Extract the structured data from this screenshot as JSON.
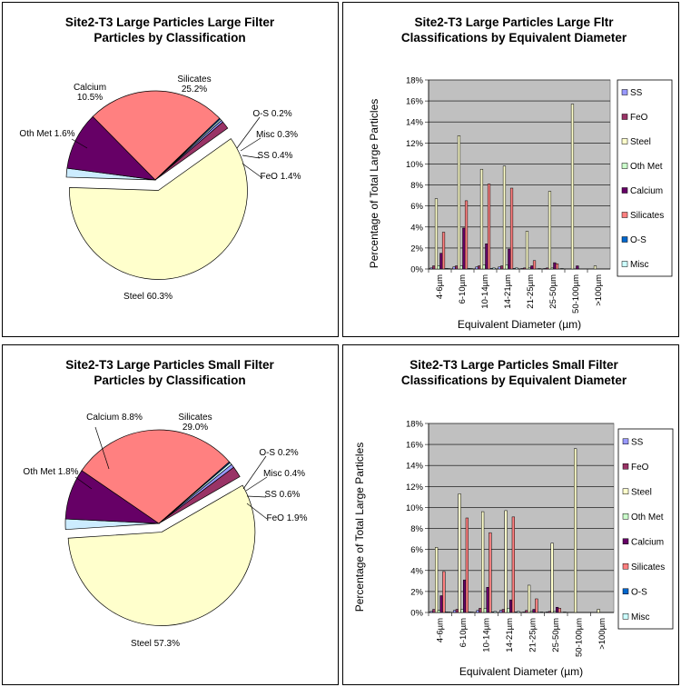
{
  "chart_data": [
    {
      "type": "pie",
      "title": [
        "Site2-T3 Large Particles Large Filter",
        "Particles by Classification"
      ],
      "slices": [
        {
          "label": "Steel 60.3%",
          "name": "Steel",
          "value": 60.3,
          "color": "#ffffcc"
        },
        {
          "label": "Oth Met 1.6%",
          "name": "Oth Met",
          "value": 1.6,
          "color": "#ccecff"
        },
        {
          "label": "Calcium\n10.5%",
          "name": "Calcium",
          "value": 10.5,
          "color": "#660066"
        },
        {
          "label": "Silicates\n25.2%",
          "name": "Silicates",
          "value": 25.2,
          "color": "#ff8080"
        },
        {
          "label": "O-S 0.2%",
          "name": "O-S",
          "value": 0.2,
          "color": "#0066cc"
        },
        {
          "label": "Misc 0.3%",
          "name": "Misc",
          "value": 0.3,
          "color": "#ccffff"
        },
        {
          "label": "SS 0.4%",
          "name": "SS",
          "value": 0.4,
          "color": "#9999ff"
        },
        {
          "label": "FeO 1.4%",
          "name": "FeO",
          "value": 1.4,
          "color": "#993366"
        }
      ]
    },
    {
      "type": "bar",
      "title": [
        "Site2-T3 Large Particles Large Fltr",
        "Classifications  by Equivalent Diameter"
      ],
      "xlabel": "Equivalent Diameter (µm)",
      "ylabel": "Percentage of Total Large Particles",
      "ylim": [
        0,
        18
      ],
      "yticks": [
        "0%",
        "2%",
        "4%",
        "6%",
        "8%",
        "10%",
        "12%",
        "14%",
        "16%",
        "18%"
      ],
      "grid": true,
      "legend_position": "right",
      "categories": [
        "4-6µm",
        "6-10µm",
        "10-14µm",
        "14-21µm",
        "21-25µm",
        "25-50µm",
        "50-100µm",
        ">100µm"
      ],
      "series": [
        {
          "name": "SS",
          "color": "#9999ff",
          "values": [
            0.1,
            0.2,
            0.2,
            0.2,
            0.05,
            0.05,
            0.0,
            0.0
          ]
        },
        {
          "name": "FeO",
          "color": "#993366",
          "values": [
            0.3,
            0.3,
            0.3,
            0.3,
            0.1,
            0.1,
            0.0,
            0.0
          ]
        },
        {
          "name": "Steel",
          "color": "#ffffcc",
          "values": [
            6.7,
            12.7,
            9.5,
            9.8,
            3.6,
            7.4,
            15.7,
            0.3
          ]
        },
        {
          "name": "Oth Met",
          "color": "#ccffcc",
          "values": [
            0.3,
            0.3,
            0.4,
            0.4,
            0.1,
            0.1,
            0.0,
            0.0
          ]
        },
        {
          "name": "Calcium",
          "color": "#660066",
          "values": [
            1.5,
            3.9,
            2.4,
            1.9,
            0.3,
            0.6,
            0.3,
            0.0
          ]
        },
        {
          "name": "Silicates",
          "color": "#ff8080",
          "values": [
            3.5,
            6.5,
            8.1,
            7.7,
            0.8,
            0.5,
            0.0,
            0.0
          ]
        },
        {
          "name": "O-S",
          "color": "#0066cc",
          "values": [
            0.05,
            0.05,
            0.05,
            0.05,
            0.0,
            0.0,
            0.0,
            0.0
          ]
        },
        {
          "name": "Misc",
          "color": "#ccffff",
          "values": [
            0.05,
            0.05,
            0.1,
            0.1,
            0.05,
            0.05,
            0.0,
            0.0
          ]
        }
      ]
    },
    {
      "type": "pie",
      "title": [
        "Site2-T3 Large Particles Small Filter",
        "Particles by Classification"
      ],
      "slices": [
        {
          "label": "Steel 57.3%",
          "name": "Steel",
          "value": 57.3,
          "color": "#ffffcc"
        },
        {
          "label": "Oth Met 1.8%",
          "name": "Oth Met",
          "value": 1.8,
          "color": "#ccecff"
        },
        {
          "label": "Calcium 8.8%",
          "name": "Calcium",
          "value": 8.8,
          "color": "#660066"
        },
        {
          "label": "Silicates\n29.0%",
          "name": "Silicates",
          "value": 29.0,
          "color": "#ff8080"
        },
        {
          "label": "O-S 0.2%",
          "name": "O-S",
          "value": 0.2,
          "color": "#0066cc"
        },
        {
          "label": "Misc 0.4%",
          "name": "Misc",
          "value": 0.4,
          "color": "#ccffff"
        },
        {
          "label": "SS 0.6%",
          "name": "SS",
          "value": 0.6,
          "color": "#9999ff"
        },
        {
          "label": "FeO 1.9%",
          "name": "FeO",
          "value": 1.9,
          "color": "#993366"
        }
      ]
    },
    {
      "type": "bar",
      "title": [
        "Site2-T3 Large Particles Small Filter",
        "Classifications  by Equivalent Diameter"
      ],
      "xlabel": "Equivalent Diameter (µm)",
      "ylabel": "Percentage of Total Large Particles",
      "ylim": [
        0,
        18
      ],
      "yticks": [
        "0%",
        "2%",
        "4%",
        "6%",
        "8%",
        "10%",
        "12%",
        "14%",
        "16%",
        "18%"
      ],
      "grid": true,
      "legend_position": "right",
      "categories": [
        "4-6µm",
        "6-10µm",
        "10-14µm",
        "14-21µm",
        "21-25µm",
        "25-50µm",
        "50-100µm",
        ">100µm"
      ],
      "series": [
        {
          "name": "SS",
          "color": "#9999ff",
          "values": [
            0.1,
            0.2,
            0.2,
            0.2,
            0.05,
            0.05,
            0.0,
            0.0
          ]
        },
        {
          "name": "FeO",
          "color": "#993366",
          "values": [
            0.3,
            0.3,
            0.4,
            0.3,
            0.2,
            0.1,
            0.0,
            0.0
          ]
        },
        {
          "name": "Steel",
          "color": "#ffffcc",
          "values": [
            6.2,
            11.3,
            9.6,
            9.7,
            2.6,
            6.6,
            15.6,
            0.3
          ]
        },
        {
          "name": "Oth Met",
          "color": "#ccffcc",
          "values": [
            0.2,
            0.3,
            0.4,
            0.4,
            0.1,
            0.1,
            0.0,
            0.0
          ]
        },
        {
          "name": "Calcium",
          "color": "#660066",
          "values": [
            1.6,
            3.1,
            2.4,
            1.2,
            0.3,
            0.5,
            0.0,
            0.0
          ]
        },
        {
          "name": "Silicates",
          "color": "#ff8080",
          "values": [
            3.9,
            9.0,
            7.6,
            9.1,
            1.3,
            0.4,
            0.0,
            0.0
          ]
        },
        {
          "name": "O-S",
          "color": "#0066cc",
          "values": [
            0.05,
            0.05,
            0.05,
            0.05,
            0.0,
            0.0,
            0.0,
            0.0
          ]
        },
        {
          "name": "Misc",
          "color": "#ccffff",
          "values": [
            0.05,
            0.05,
            0.1,
            0.1,
            0.05,
            0.05,
            0.0,
            0.0
          ]
        }
      ]
    }
  ]
}
